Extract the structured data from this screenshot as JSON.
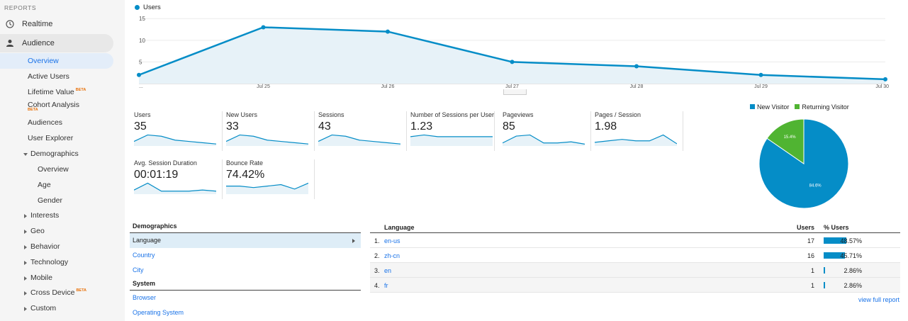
{
  "sidebar": {
    "section_label": "REPORTS",
    "realtime": "Realtime",
    "audience": "Audience",
    "items": [
      {
        "label": "Overview"
      },
      {
        "label": "Active Users"
      },
      {
        "label": "Lifetime Value",
        "badge": "BETA"
      },
      {
        "label": "Cohort Analysis",
        "badge": "BETA"
      },
      {
        "label": "Audiences"
      },
      {
        "label": "User Explorer"
      },
      {
        "label": "Demographics"
      },
      {
        "label": "Overview"
      },
      {
        "label": "Age"
      },
      {
        "label": "Gender"
      },
      {
        "label": "Interests"
      },
      {
        "label": "Geo"
      },
      {
        "label": "Behavior"
      },
      {
        "label": "Technology"
      },
      {
        "label": "Mobile"
      },
      {
        "label": "Cross Device",
        "badge": "BETA"
      },
      {
        "label": "Custom"
      }
    ]
  },
  "colors": {
    "accent": "#058dc7",
    "returning": "#50b432",
    "link": "#1a73e8"
  },
  "chart_data": [
    {
      "type": "area",
      "series": [
        {
          "name": "Users",
          "values": [
            2,
            13,
            12,
            5,
            4,
            2,
            1
          ]
        }
      ],
      "categories": [
        "...",
        "Jul 25",
        "Jul 26",
        "Jul 27",
        "Jul 28",
        "Jul 29",
        "Jul 30"
      ],
      "ylim": [
        0,
        17
      ],
      "yticks": [
        5,
        10,
        15
      ],
      "grid": true,
      "legend": "top-left"
    },
    {
      "type": "pie",
      "legend_labels": [
        "New Visitor",
        "Returning Visitor"
      ],
      "values": [
        84.6,
        15.4
      ],
      "labels": [
        "84.6%",
        "15.4%"
      ],
      "legend": "top"
    }
  ],
  "metrics": [
    {
      "label": "Users",
      "value": "35",
      "spark": [
        3,
        8,
        7,
        4,
        3,
        2,
        1
      ]
    },
    {
      "label": "New Users",
      "value": "33",
      "spark": [
        3,
        8,
        7,
        4,
        3,
        2,
        1
      ]
    },
    {
      "label": "Sessions",
      "value": "43",
      "spark": [
        3,
        8,
        7,
        4,
        3,
        2,
        1
      ]
    },
    {
      "label": "Number of Sessions per User",
      "value": "1.23",
      "spark": [
        5,
        6,
        5,
        5,
        5,
        5,
        5
      ]
    },
    {
      "label": "Pageviews",
      "value": "85",
      "spark": [
        2,
        8,
        9,
        2,
        2,
        3,
        1
      ]
    },
    {
      "label": "Pages / Session",
      "value": "1.98",
      "spark": [
        2,
        3,
        4,
        3,
        3,
        7,
        1
      ]
    },
    {
      "label": "Avg. Session Duration",
      "value": "00:01:19",
      "spark": [
        3,
        9,
        2,
        2,
        2,
        3,
        2
      ]
    },
    {
      "label": "Bounce Rate",
      "value": "74.42%",
      "spark": [
        5,
        5,
        4,
        5,
        6,
        3,
        7
      ]
    }
  ],
  "demographics_table": {
    "title": "Demographics",
    "rows": [
      "Language",
      "Country",
      "City"
    ],
    "system_title": "System",
    "system_rows": [
      "Browser",
      "Operating System"
    ]
  },
  "language_table": {
    "col_language": "Language",
    "col_users": "Users",
    "col_pct": "% Users",
    "rows": [
      {
        "num": "1.",
        "lang": "en-us",
        "users": "17",
        "pct": "48.57%",
        "share": 48.57
      },
      {
        "num": "2.",
        "lang": "zh-cn",
        "users": "16",
        "pct": "45.71%",
        "share": 45.71
      },
      {
        "num": "3.",
        "lang": "en",
        "users": "1",
        "pct": "2.86%",
        "share": 2.86
      },
      {
        "num": "4.",
        "lang": "fr",
        "users": "1",
        "pct": "2.86%",
        "share": 2.86
      }
    ],
    "full_report": "view full report"
  }
}
